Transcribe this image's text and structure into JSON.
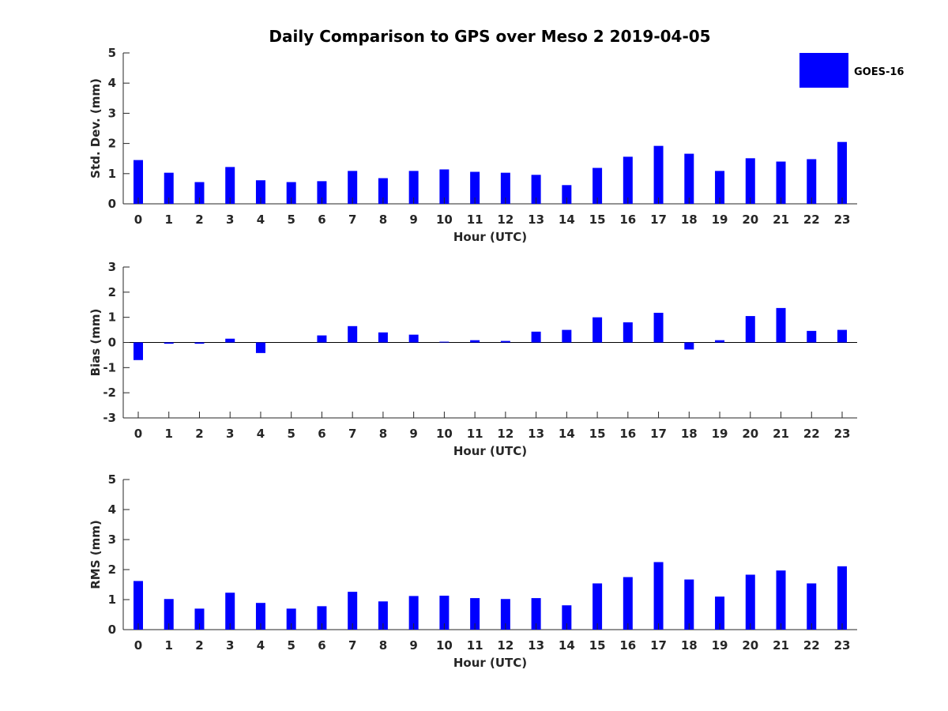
{
  "title": "Daily Comparison to GPS over Meso 2 2019-04-05",
  "legend": {
    "label": "GOES-16",
    "color": "#0000ff"
  },
  "colors": {
    "bar": "#0000ff",
    "axis": "#262626"
  },
  "chart_data": [
    {
      "type": "bar",
      "ylabel": "Std. Dev. (mm)",
      "xlabel": "Hour (UTC)",
      "ylim": [
        0,
        5
      ],
      "yticks": [
        0,
        1,
        2,
        3,
        4,
        5
      ],
      "categories": [
        "0",
        "1",
        "2",
        "3",
        "4",
        "5",
        "6",
        "7",
        "8",
        "9",
        "10",
        "11",
        "12",
        "13",
        "14",
        "15",
        "16",
        "17",
        "18",
        "19",
        "20",
        "21",
        "22",
        "23"
      ],
      "series": [
        {
          "name": "GOES-16",
          "values": [
            1.45,
            1.03,
            0.72,
            1.22,
            0.78,
            0.72,
            0.75,
            1.09,
            0.85,
            1.09,
            1.14,
            1.06,
            1.03,
            0.96,
            0.62,
            1.19,
            1.56,
            1.92,
            1.66,
            1.09,
            1.51,
            1.4,
            1.48,
            2.05
          ]
        }
      ]
    },
    {
      "type": "bar",
      "ylabel": "Bias (mm)",
      "xlabel": "Hour (UTC)",
      "ylim": [
        -3,
        3
      ],
      "yticks": [
        -3,
        -2,
        -1,
        0,
        1,
        2,
        3
      ],
      "categories": [
        "0",
        "1",
        "2",
        "3",
        "4",
        "5",
        "6",
        "7",
        "8",
        "9",
        "10",
        "11",
        "12",
        "13",
        "14",
        "15",
        "16",
        "17",
        "18",
        "19",
        "20",
        "21",
        "22",
        "23"
      ],
      "series": [
        {
          "name": "GOES-16",
          "values": [
            -0.7,
            -0.05,
            -0.05,
            0.15,
            -0.42,
            0.0,
            0.28,
            0.65,
            0.4,
            0.31,
            0.03,
            0.09,
            0.06,
            0.43,
            0.5,
            1.0,
            0.8,
            1.18,
            -0.28,
            0.09,
            1.05,
            1.37,
            0.46,
            0.5
          ]
        }
      ]
    },
    {
      "type": "bar",
      "ylabel": "RMS (mm)",
      "xlabel": "Hour (UTC)",
      "ylim": [
        0,
        5
      ],
      "yticks": [
        0,
        1,
        2,
        3,
        4,
        5
      ],
      "categories": [
        "0",
        "1",
        "2",
        "3",
        "4",
        "5",
        "6",
        "7",
        "8",
        "9",
        "10",
        "11",
        "12",
        "13",
        "14",
        "15",
        "16",
        "17",
        "18",
        "19",
        "20",
        "21",
        "22",
        "23"
      ],
      "series": [
        {
          "name": "GOES-16",
          "values": [
            1.62,
            1.02,
            0.7,
            1.23,
            0.89,
            0.7,
            0.78,
            1.26,
            0.94,
            1.12,
            1.13,
            1.05,
            1.02,
            1.05,
            0.81,
            1.54,
            1.75,
            2.25,
            1.67,
            1.1,
            1.83,
            1.97,
            1.54,
            2.11
          ]
        }
      ]
    }
  ]
}
